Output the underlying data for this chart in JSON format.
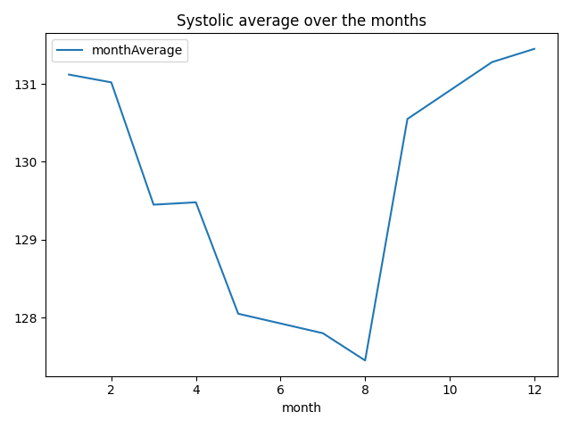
{
  "months": [
    1,
    2,
    3,
    4,
    5,
    7,
    8,
    9,
    11,
    12
  ],
  "values": [
    131.12,
    131.02,
    129.45,
    129.48,
    128.05,
    127.8,
    127.45,
    130.55,
    131.28,
    131.45
  ],
  "title": "Systolic average over the months",
  "xlabel": "month",
  "ylabel": "",
  "legend_label": "monthAverage",
  "line_color": "#1f77b4",
  "line_width": 1.5,
  "xticks": [
    2,
    4,
    6,
    8,
    10,
    12
  ],
  "yticks": [
    128,
    129,
    130,
    131
  ],
  "xlim": [
    1,
    12
  ],
  "legend_loc": "upper left"
}
